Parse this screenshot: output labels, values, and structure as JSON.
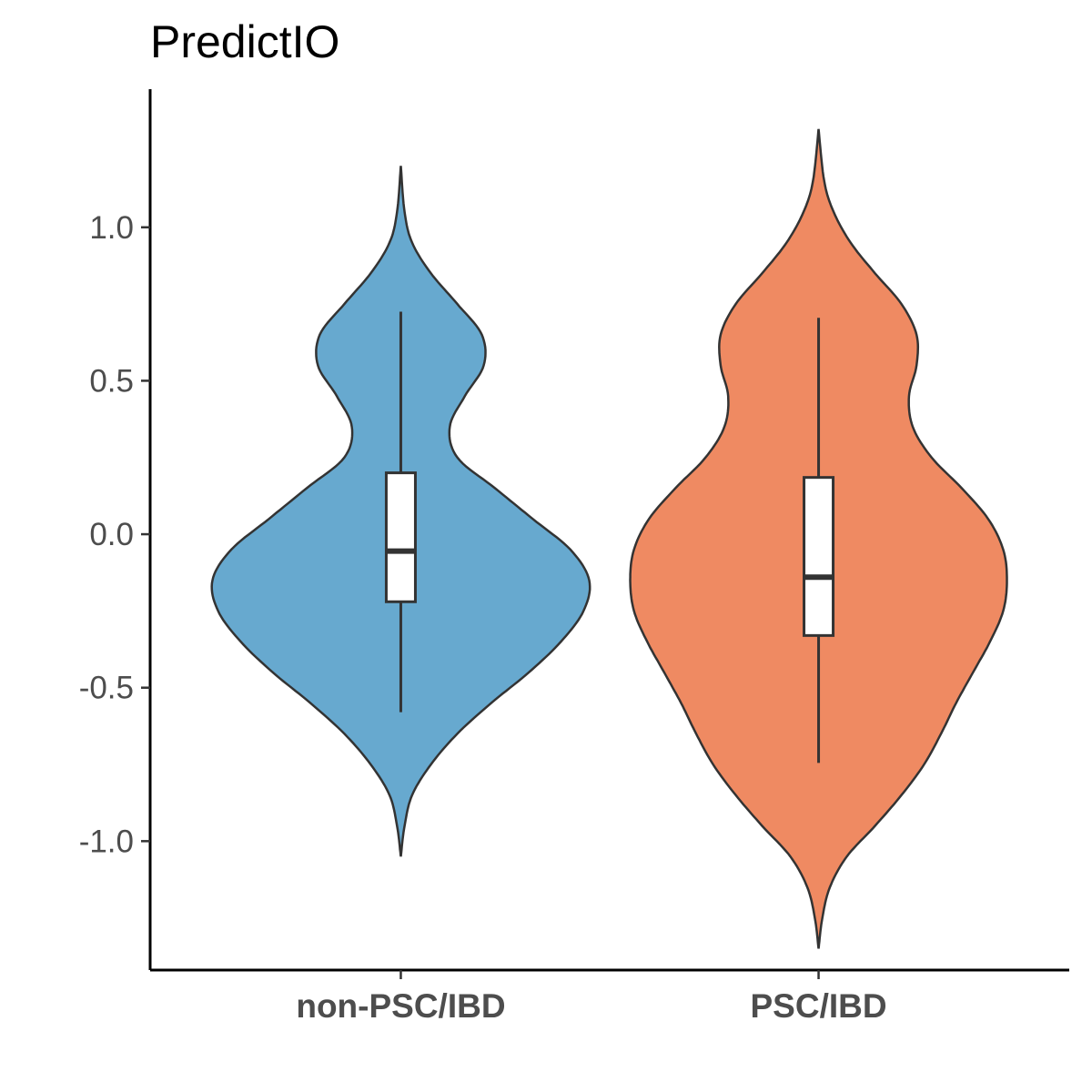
{
  "chart_data": {
    "type": "violin",
    "title": "PredictIO",
    "xlabel": "",
    "ylabel": "",
    "ylim": [
      -1.42,
      1.45
    ],
    "yticks": [
      {
        "value": 1.0,
        "label": "1.0"
      },
      {
        "value": 0.5,
        "label": "0.5"
      },
      {
        "value": 0.0,
        "label": "0.0"
      },
      {
        "value": -0.5,
        "label": "-0.5"
      },
      {
        "value": -1.0,
        "label": "-1.0"
      }
    ],
    "grid": false,
    "legend": "none",
    "categories": [
      "non-PSC/IBD",
      "PSC/IBD"
    ],
    "groups": [
      {
        "category": "non-PSC/IBD",
        "color": "#67a9cf",
        "box": {
          "whisker_low": -0.58,
          "q1": -0.22,
          "median": -0.055,
          "q3": 0.2,
          "whisker_high": 0.725
        },
        "violin_range": [
          -1.05,
          1.2
        ],
        "density_profile": [
          [
            -1.05,
            0.0
          ],
          [
            -0.95,
            0.02
          ],
          [
            -0.85,
            0.06
          ],
          [
            -0.75,
            0.16
          ],
          [
            -0.65,
            0.3
          ],
          [
            -0.55,
            0.48
          ],
          [
            -0.45,
            0.68
          ],
          [
            -0.35,
            0.85
          ],
          [
            -0.25,
            0.97
          ],
          [
            -0.15,
            1.0
          ],
          [
            -0.05,
            0.9
          ],
          [
            0.05,
            0.7
          ],
          [
            0.15,
            0.5
          ],
          [
            0.25,
            0.3
          ],
          [
            0.35,
            0.26
          ],
          [
            0.45,
            0.34
          ],
          [
            0.55,
            0.44
          ],
          [
            0.65,
            0.43
          ],
          [
            0.75,
            0.3
          ],
          [
            0.85,
            0.16
          ],
          [
            0.95,
            0.06
          ],
          [
            1.05,
            0.02
          ],
          [
            1.2,
            0.0
          ]
        ]
      },
      {
        "category": "PSC/IBD",
        "color": "#ef8a62",
        "box": {
          "whisker_low": -0.745,
          "q1": -0.33,
          "median": -0.14,
          "q3": 0.185,
          "whisker_high": 0.705
        },
        "violin_range": [
          -1.35,
          1.32
        ],
        "density_profile": [
          [
            -1.35,
            0.0
          ],
          [
            -1.25,
            0.02
          ],
          [
            -1.15,
            0.06
          ],
          [
            -1.05,
            0.15
          ],
          [
            -0.95,
            0.3
          ],
          [
            -0.85,
            0.44
          ],
          [
            -0.75,
            0.56
          ],
          [
            -0.65,
            0.65
          ],
          [
            -0.55,
            0.73
          ],
          [
            -0.45,
            0.82
          ],
          [
            -0.35,
            0.91
          ],
          [
            -0.25,
            0.98
          ],
          [
            -0.15,
            1.0
          ],
          [
            -0.05,
            0.98
          ],
          [
            0.05,
            0.9
          ],
          [
            0.15,
            0.76
          ],
          [
            0.25,
            0.6
          ],
          [
            0.35,
            0.5
          ],
          [
            0.45,
            0.48
          ],
          [
            0.55,
            0.52
          ],
          [
            0.65,
            0.52
          ],
          [
            0.75,
            0.44
          ],
          [
            0.85,
            0.3
          ],
          [
            0.95,
            0.17
          ],
          [
            1.05,
            0.08
          ],
          [
            1.15,
            0.03
          ],
          [
            1.32,
            0.0
          ]
        ]
      }
    ]
  }
}
